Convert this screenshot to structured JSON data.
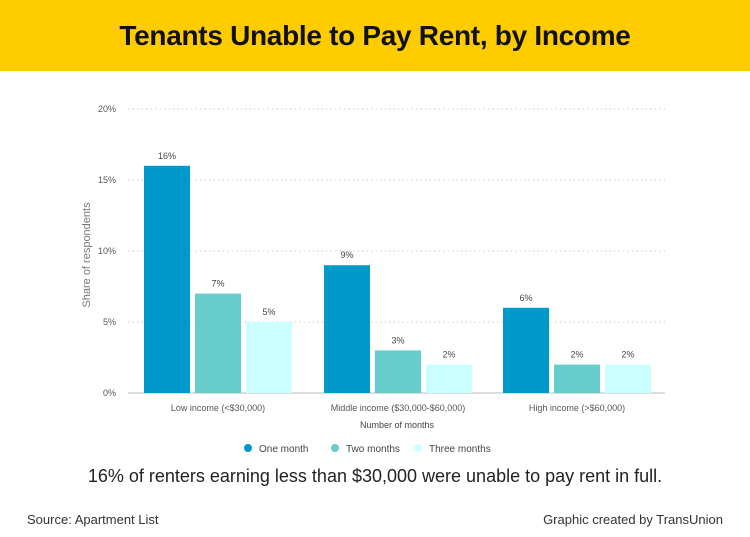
{
  "header": {
    "title": "Tenants Unable to Pay Rent, by Income",
    "background": "#ffcc00"
  },
  "chart_data": {
    "type": "bar",
    "categories": [
      "Low income (<$30,000)",
      "Middle income ($30,000-$60,000)",
      "High income (>$60,000)"
    ],
    "series": [
      {
        "name": "One month",
        "color": "#0099cc",
        "values": [
          16,
          9,
          6
        ],
        "labels": [
          "16%",
          "9%",
          "6%"
        ]
      },
      {
        "name": "Two months",
        "color": "#66cccc",
        "values": [
          7,
          3,
          2
        ],
        "labels": [
          "7%",
          "3%",
          "2%"
        ]
      },
      {
        "name": "Three months",
        "color": "#ccffff",
        "values": [
          5,
          2,
          2
        ],
        "labels": [
          "5%",
          "2%",
          "2%"
        ]
      }
    ],
    "ylim": [
      0,
      20
    ],
    "yticks": [
      0,
      5,
      10,
      15,
      20
    ],
    "ytick_labels": [
      "0%",
      "5%",
      "10%",
      "15%",
      "20%"
    ],
    "ylabel": "Share of respondents",
    "xlabel": "Number of months",
    "grid": true,
    "legend": "bottom"
  },
  "footer": {
    "subtitle": "16% of renters earning less than $30,000 were unable to pay rent in full.",
    "source": "Source: Apartment List",
    "credit": "Graphic created by TransUnion"
  }
}
